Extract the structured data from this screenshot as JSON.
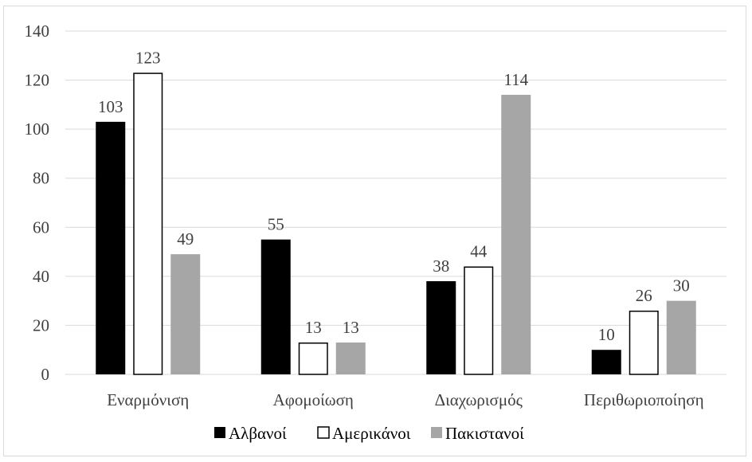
{
  "chart_data": {
    "type": "bar",
    "categories": [
      "Εναρμόνιση",
      "Αφομοίωση",
      "Διαχωρισμός",
      "Περιθωριοποίηση"
    ],
    "series": [
      {
        "name": "Αλβανοί",
        "values": [
          103,
          55,
          38,
          10
        ],
        "color": "#000000",
        "stroke": "#000000"
      },
      {
        "name": "Αμερικάνοι",
        "values": [
          123,
          13,
          44,
          26
        ],
        "color": "#ffffff",
        "stroke": "#000000"
      },
      {
        "name": "Πακιστανοί",
        "values": [
          49,
          13,
          114,
          30
        ],
        "color": "#a6a6a6",
        "stroke": "#a6a6a6"
      }
    ],
    "yticks": [
      0,
      20,
      40,
      60,
      80,
      100,
      120,
      140
    ],
    "ylim": [
      0,
      140
    ],
    "grid": true,
    "legend_position": "bottom",
    "data_labels": true
  }
}
